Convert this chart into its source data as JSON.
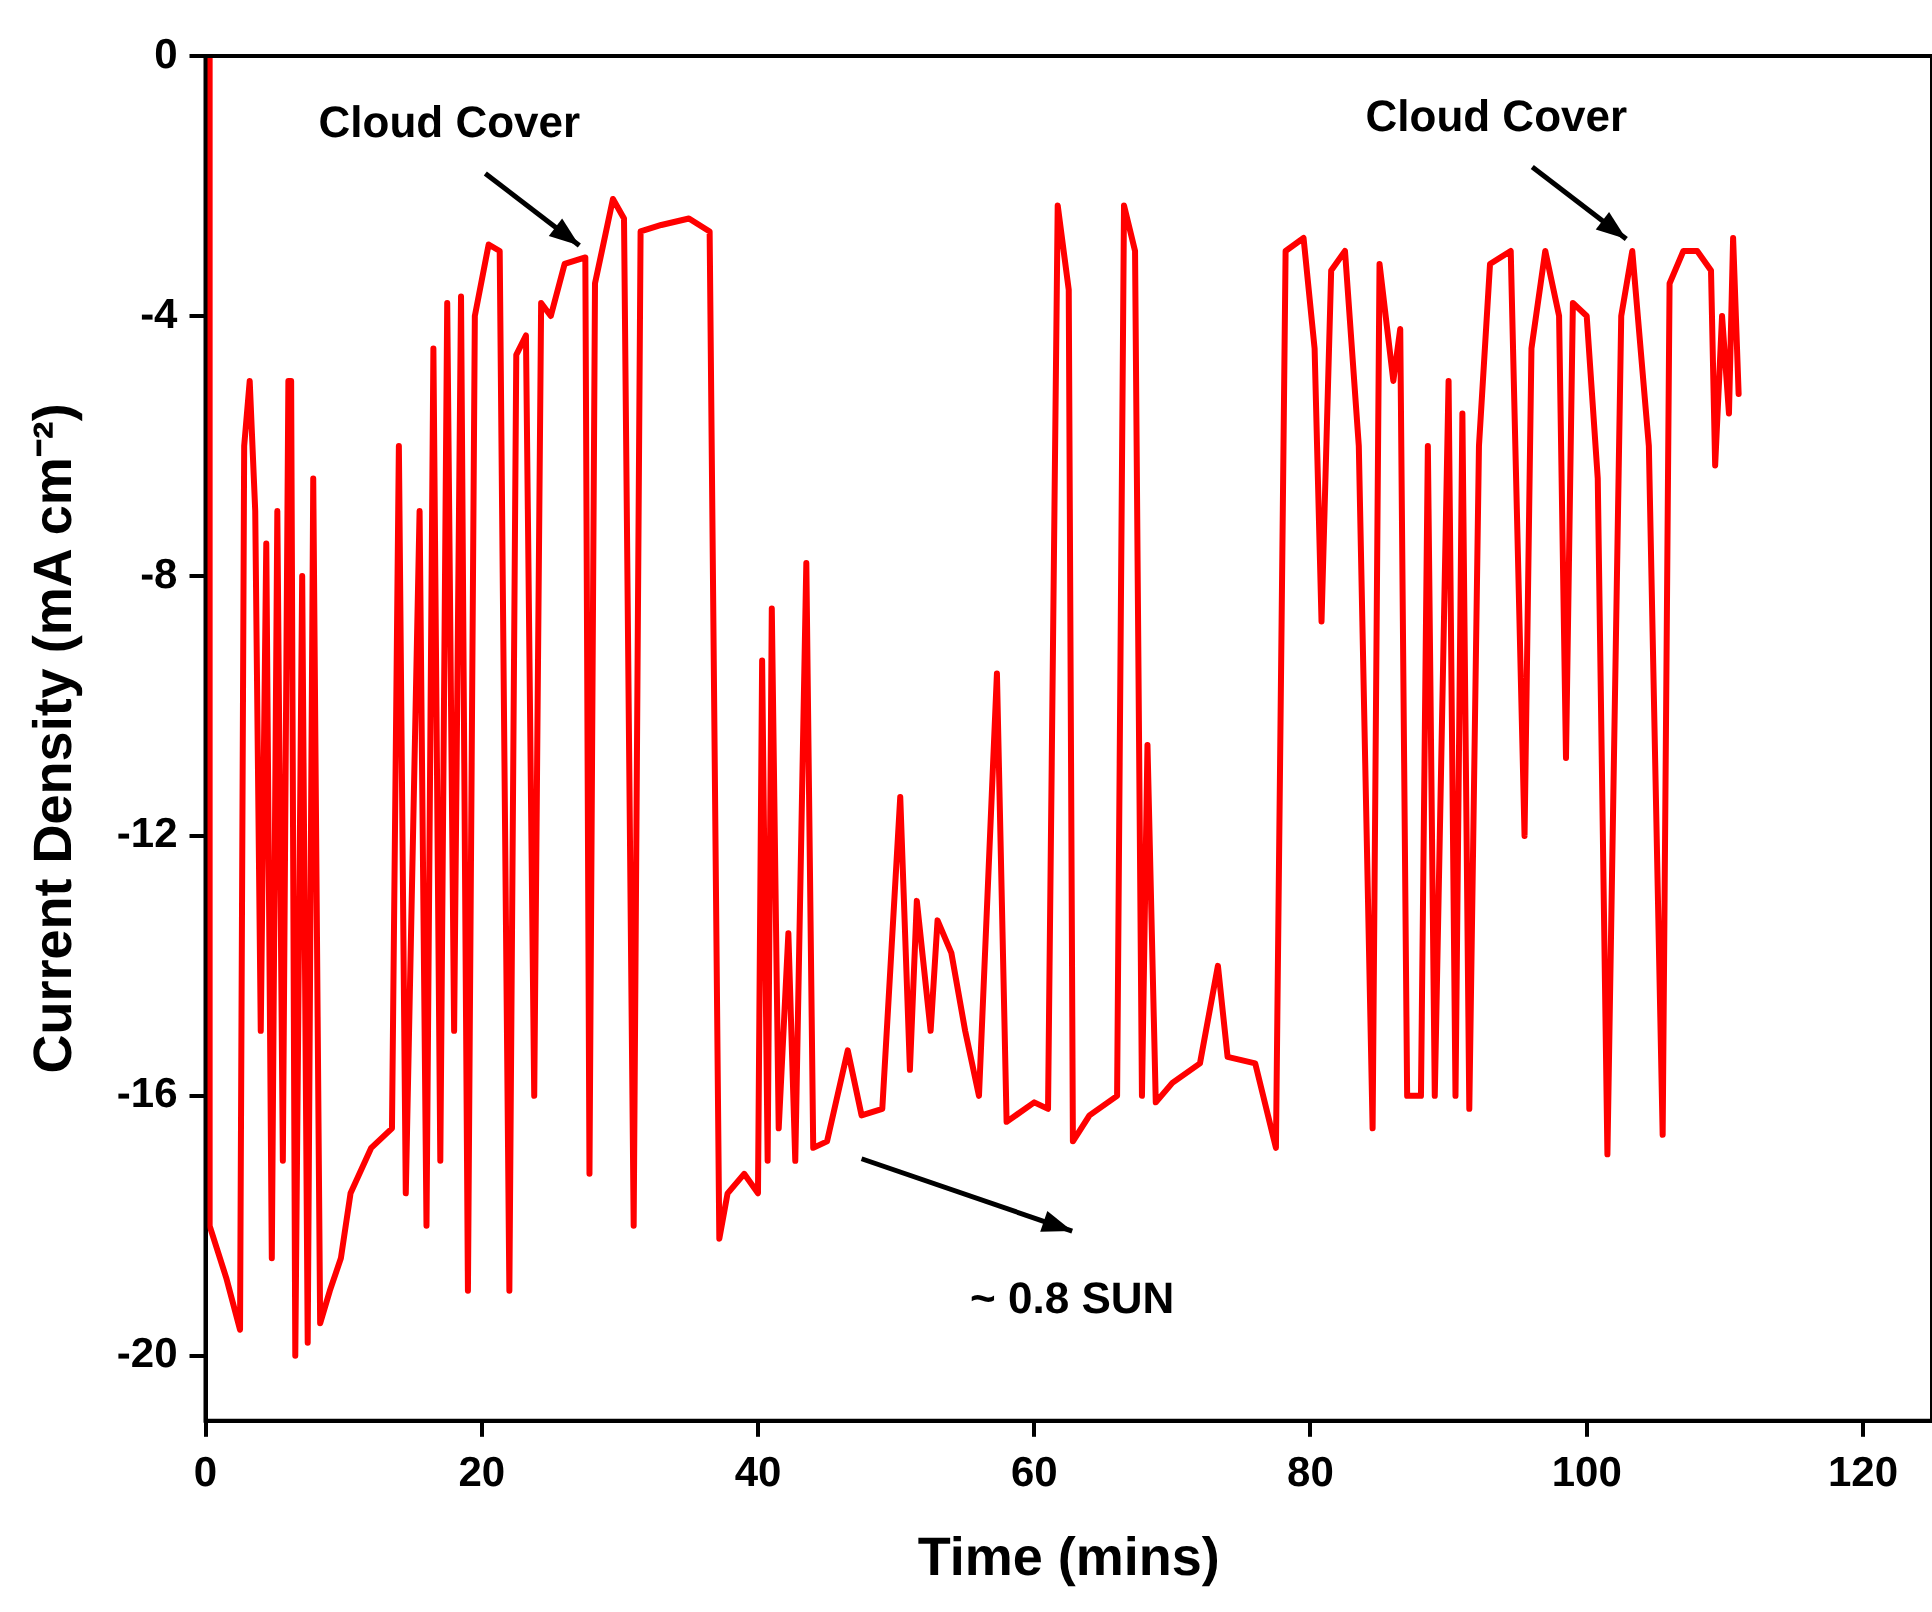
{
  "chart_data": {
    "type": "line",
    "xlabel": "Time (mins)",
    "ylabel": "Current Density (mA cm⁻²)",
    "xlim": [
      0,
      125
    ],
    "xticks": [
      0,
      20,
      40,
      60,
      80,
      100,
      120
    ],
    "ylim": [
      -21,
      0
    ],
    "yticks": [
      0,
      -4,
      -8,
      -12,
      -16,
      -20
    ],
    "marker": "none",
    "line_style": "solid",
    "series": [
      {
        "color": "#ff0000",
        "x": [
          0.2,
          0.3,
          1.5,
          2.5,
          2.8,
          3.2,
          3.6,
          4,
          4.4,
          4.8,
          5.2,
          5.6,
          6,
          6.2,
          6.5,
          7,
          7.4,
          7.8,
          8.3,
          9,
          9.8,
          10.5,
          12,
          13.5,
          14,
          14.5,
          15.5,
          16,
          16.5,
          17,
          17.5,
          18,
          18.5,
          19,
          19.5,
          20.5,
          21.3,
          22,
          22.5,
          23.2,
          23.8,
          24.3,
          25,
          26,
          27.5,
          27.8,
          28.2,
          29.5,
          30.3,
          31,
          31.5,
          33,
          35,
          36.5,
          37.2,
          37.8,
          39,
          40,
          40.3,
          40.7,
          41,
          41.5,
          42.2,
          42.7,
          43.5,
          44,
          45,
          46.5,
          47.5,
          49,
          50.3,
          51,
          51.5,
          52.5,
          53,
          54,
          55,
          56,
          57.3,
          58,
          60,
          61,
          61.7,
          62.5,
          62.8,
          64,
          66,
          66.5,
          67.3,
          67.8,
          68.2,
          68.8,
          70,
          72,
          73.3,
          74,
          76,
          77.5,
          78.2,
          79.5,
          80.3,
          80.8,
          81.5,
          82.5,
          83.5,
          84.5,
          85,
          86,
          86.5,
          87,
          88,
          88.5,
          89,
          90,
          90.5,
          91,
          91.5,
          92.2,
          93,
          94.5,
          95.5,
          96,
          97,
          98,
          98.5,
          99,
          100,
          100.8,
          101.5,
          102.5,
          103.3,
          104.5,
          105.5,
          106,
          107,
          108,
          109,
          109.3,
          109.8,
          110.3,
          110.6,
          111
        ],
        "values": [
          0,
          -18,
          -18.8,
          -19.6,
          -6,
          -5,
          -7,
          -15,
          -7.5,
          -18.5,
          -7,
          -17,
          -5,
          -5,
          -20,
          -8,
          -19.8,
          -6.5,
          -19.5,
          -19,
          -18.5,
          -17.5,
          -16.8,
          -16.5,
          -6,
          -17.5,
          -7,
          -18,
          -4.5,
          -17,
          -3.8,
          -15,
          -3.7,
          -19,
          -4,
          -2.9,
          -3,
          -19,
          -4.6,
          -4.3,
          -16,
          -3.8,
          -4,
          -3.2,
          -3.1,
          -17.2,
          -3.5,
          -2.2,
          -2.5,
          -18,
          -2.7,
          -2.6,
          -2.5,
          -2.7,
          -18.2,
          -17.5,
          -17.2,
          -17.5,
          -9.3,
          -17,
          -8.5,
          -16.5,
          -13.5,
          -17,
          -7.8,
          -16.8,
          -16.7,
          -15.3,
          -16.3,
          -16.2,
          -11.4,
          -15.6,
          -13,
          -15,
          -13.3,
          -13.8,
          -15,
          -16,
          -9.5,
          -16.4,
          -16.1,
          -16.2,
          -2.3,
          -3.6,
          -16.7,
          -16.3,
          -16,
          -2.3,
          -3,
          -16,
          -10.6,
          -16.1,
          -15.8,
          -15.5,
          -14,
          -15.4,
          -15.5,
          -16.8,
          -3,
          -2.8,
          -4.5,
          -8.7,
          -3.3,
          -3,
          -6,
          -16.5,
          -3.2,
          -5,
          -4.2,
          -16,
          -16,
          -6,
          -16,
          -5,
          -16,
          -5.5,
          -16.2,
          -6,
          -3.2,
          -3,
          -12,
          -4.5,
          -3,
          -4,
          -10.8,
          -3.8,
          -4,
          -6.5,
          -16.9,
          -4,
          -3,
          -6,
          -16.6,
          -3.5,
          -3,
          -3,
          -3.3,
          -6.3,
          -4,
          -5.5,
          -2.8,
          -5.2
        ]
      }
    ],
    "annotations": [
      {
        "text": "Cloud Cover",
        "x": 27.5,
        "y": -3.1
      },
      "~ 0.8 SUN",
      {
        "text": "Cloud Cover",
        "x": 103.3,
        "y": -3
      }
    ]
  }
}
